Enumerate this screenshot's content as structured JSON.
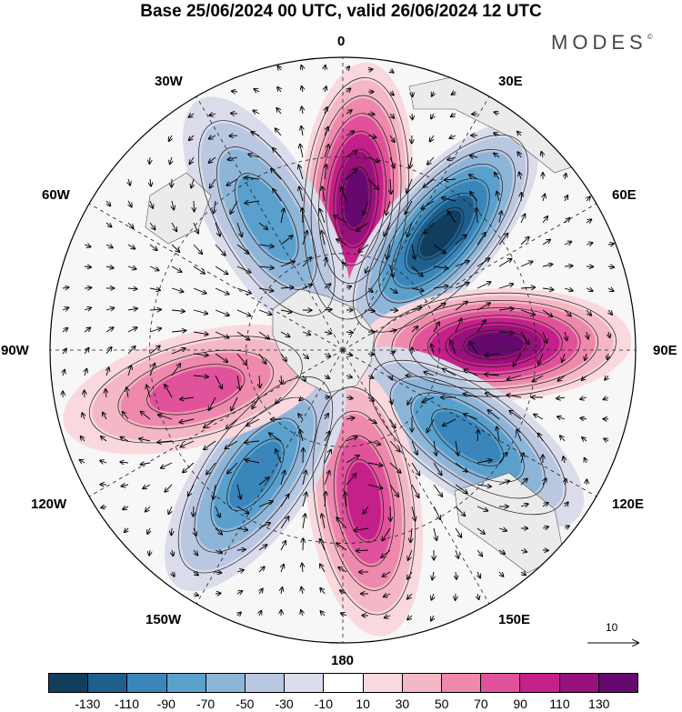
{
  "title": "Base 25/06/2024 00 UTC, valid 26/06/2024 12 UTC",
  "brand": "MODES",
  "brand_mark": "©",
  "longitude_labels": {
    "lon_0": "0",
    "lon_30e": "30E",
    "lon_60e": "60E",
    "lon_90e": "90E",
    "lon_120e": "120E",
    "lon_150e": "150E",
    "lon_180": "180",
    "lon_150w": "150W",
    "lon_120w": "120W",
    "lon_90w": "90W",
    "lon_60w": "60W",
    "lon_30w": "30W"
  },
  "reference_vector": {
    "label": "10"
  },
  "colorbar": {
    "colors": [
      "#123e5e",
      "#1e5f8e",
      "#3a86bb",
      "#5aa0cc",
      "#8db5d8",
      "#b9c7e0",
      "#dadbeb",
      "#ffffff",
      "#f9d8de",
      "#f4b7c5",
      "#ee88ad",
      "#e1529c",
      "#c3208a",
      "#961179",
      "#65096e"
    ],
    "tick_labels": [
      "-130",
      "-110",
      "-90",
      "-70",
      "-50",
      "-30",
      "-10",
      "10",
      "30",
      "50",
      "70",
      "90",
      "110",
      "130"
    ]
  },
  "anomaly_centers": [
    {
      "sign": "positive",
      "lon": 5,
      "intensity": 130
    },
    {
      "sign": "negative",
      "lon": 40,
      "intensity": 130
    },
    {
      "sign": "positive",
      "lon": 88,
      "intensity": 130
    },
    {
      "sign": "negative",
      "lon": 125,
      "intensity": 90
    },
    {
      "sign": "positive",
      "lon": 172,
      "intensity": 90
    },
    {
      "sign": "negative",
      "lon": 215,
      "intensity": 90
    },
    {
      "sign": "positive",
      "lon": 255,
      "intensity": 70
    },
    {
      "sign": "negative",
      "lon": 330,
      "intensity": 70
    }
  ]
}
